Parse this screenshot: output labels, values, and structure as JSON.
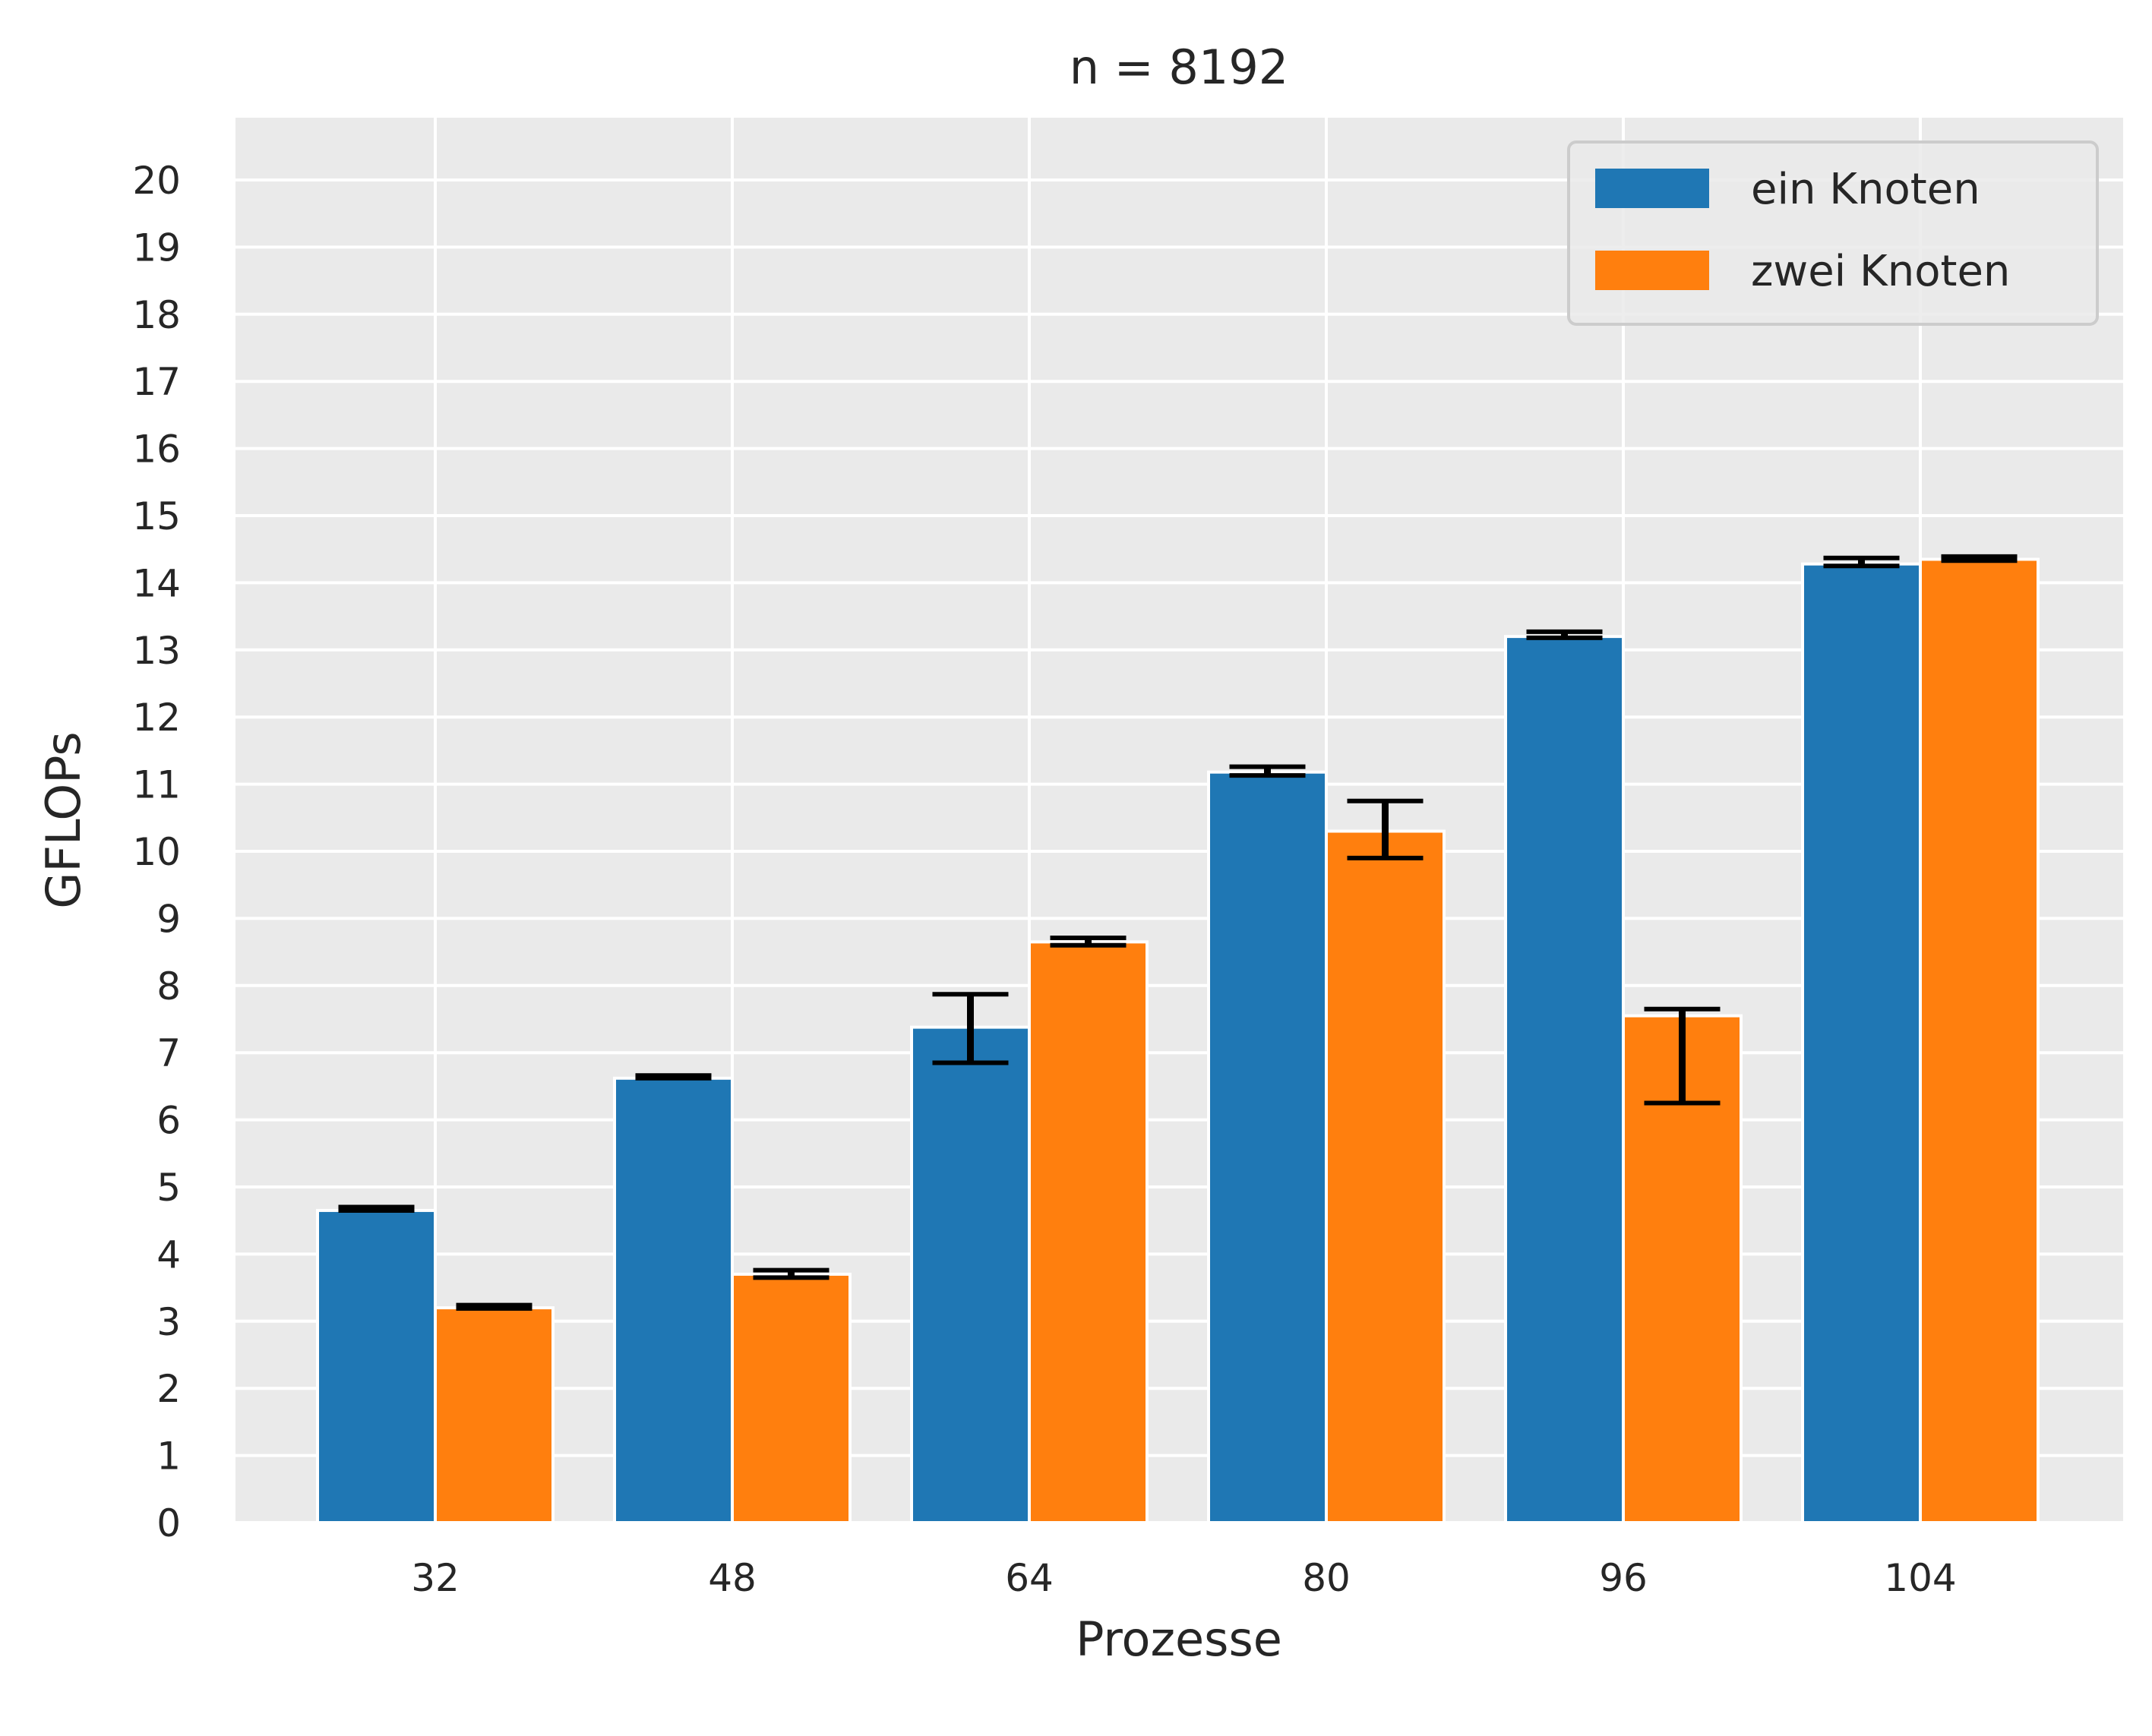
{
  "chart_data": {
    "type": "bar",
    "title": "n = 8192",
    "xlabel": "Prozesse",
    "ylabel": "GFLOPs",
    "categories": [
      "32",
      "48",
      "64",
      "80",
      "96",
      "104"
    ],
    "ylim": [
      0,
      21
    ],
    "yticks": [
      0,
      1,
      2,
      3,
      4,
      5,
      6,
      7,
      8,
      9,
      10,
      11,
      12,
      13,
      14,
      15,
      16,
      17,
      18,
      19,
      20
    ],
    "grid": true,
    "legend_position": "top-right",
    "series": [
      {
        "name": "ein Knoten",
        "color": "#1f77b4",
        "values": [
          4.65,
          6.62,
          7.38,
          11.18,
          13.2,
          14.28
        ],
        "error_low": [
          4.65,
          6.62,
          6.85,
          11.13,
          13.18,
          14.25
        ],
        "error_high": [
          4.7,
          6.66,
          7.87,
          11.26,
          13.27,
          14.37
        ]
      },
      {
        "name": "zwei Knoten",
        "color": "#ff7f0e",
        "values": [
          3.2,
          3.7,
          8.65,
          10.3,
          7.55,
          14.35
        ],
        "error_low": [
          3.19,
          3.65,
          8.6,
          9.9,
          6.25,
          14.33
        ],
        "error_high": [
          3.24,
          3.76,
          8.71,
          10.75,
          7.65,
          14.39
        ]
      }
    ]
  }
}
